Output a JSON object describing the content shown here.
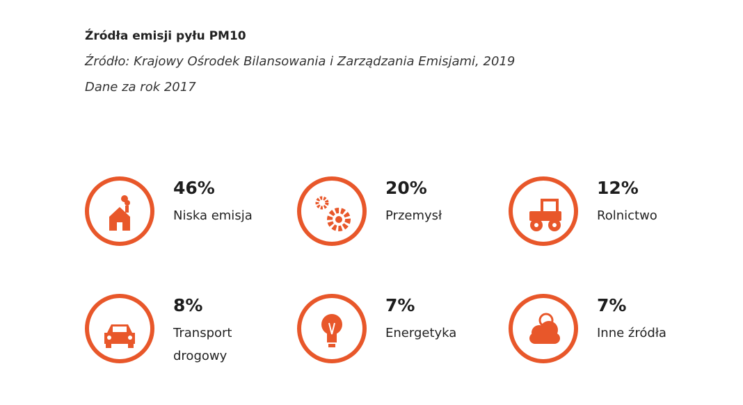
{
  "header": {
    "title": "Źródła emisji pyłu PM10",
    "source": "Źródło: Krajowy Ośrodek Bilansowania i Zarządzania Emisjami, 2019",
    "note": "Dane za rok 2017"
  },
  "items": [
    {
      "value": "46%",
      "label": "Niska emisja"
    },
    {
      "value": "20%",
      "label": "Przemysł"
    },
    {
      "value": "12%",
      "label": "Rolnictwo"
    },
    {
      "value": "8%",
      "label": "Transport drogowy"
    },
    {
      "value": "7%",
      "label": "Energetyka"
    },
    {
      "value": "7%",
      "label": "Inne źródła"
    }
  ]
}
